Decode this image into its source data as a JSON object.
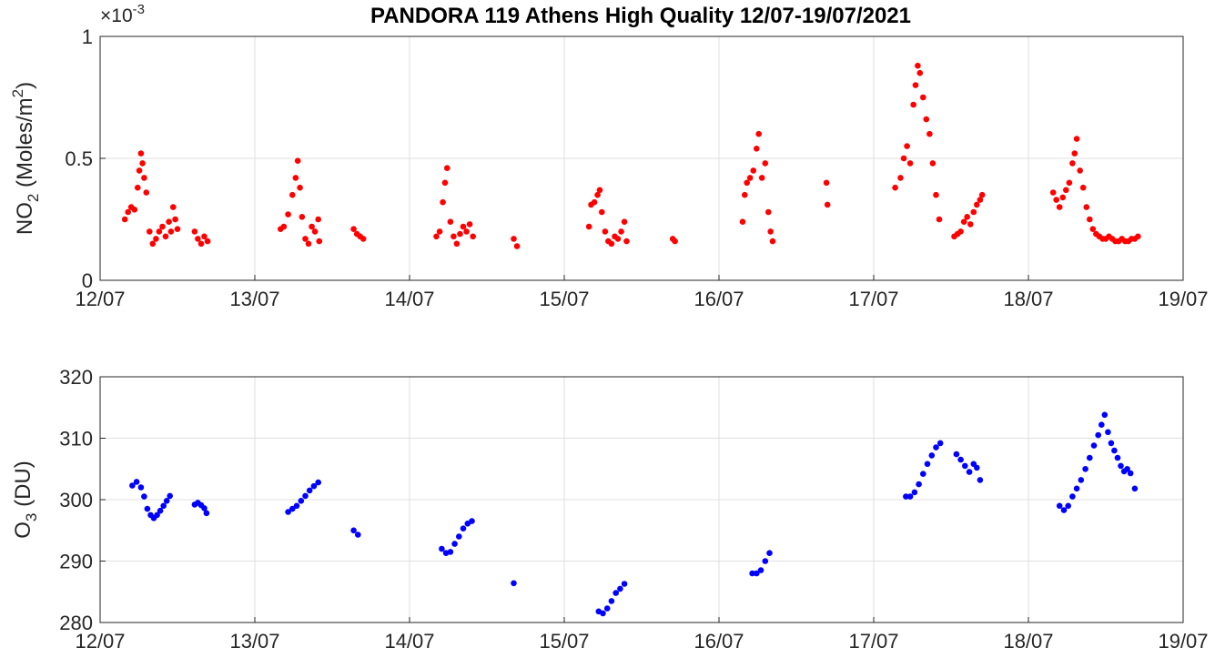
{
  "chart_data": [
    {
      "type": "scatter",
      "title": "PANDORA 119 Athens High Quality 12/07-19/07/2021",
      "ylabel": "NO2 (Moles/m2)",
      "ylabel_parts": {
        "main": "NO",
        "sub": "2",
        "unit_open": " (Moles/m",
        "sup": "2",
        "unit_close": ")"
      },
      "y_multiplier": {
        "base": "×10",
        "exp": "-3"
      },
      "x_unit": "days since 12/07 (date axis)",
      "xlim": [
        "12/07",
        "19/07"
      ],
      "ylim": [
        0,
        1
      ],
      "yticks": [
        0,
        0.5,
        1
      ],
      "ytick_labels": [
        "0",
        "0.5",
        "1"
      ],
      "xtick_labels": [
        "12/07",
        "13/07",
        "14/07",
        "15/07",
        "16/07",
        "17/07",
        "18/07",
        "19/07"
      ],
      "grid": true,
      "marker_color": "#ff0000",
      "series": [
        {
          "points": [
            [
              "12/07 03:50",
              0.25
            ],
            [
              "12/07 04:20",
              0.28
            ],
            [
              "12/07 04:50",
              0.3
            ],
            [
              "12/07 05:20",
              0.29
            ],
            [
              "12/07 05:50",
              0.38
            ],
            [
              "12/07 06:05",
              0.45
            ],
            [
              "12/07 06:20",
              0.52
            ],
            [
              "12/07 06:35",
              0.48
            ],
            [
              "12/07 06:50",
              0.42
            ],
            [
              "12/07 07:10",
              0.36
            ],
            [
              "12/07 07:40",
              0.2
            ],
            [
              "12/07 08:10",
              0.15
            ],
            [
              "12/07 08:40",
              0.17
            ],
            [
              "12/07 09:10",
              0.2
            ],
            [
              "12/07 09:40",
              0.22
            ],
            [
              "12/07 10:10",
              0.18
            ],
            [
              "12/07 10:40",
              0.24
            ],
            [
              "12/07 11:00",
              0.2
            ],
            [
              "12/07 11:20",
              0.3
            ],
            [
              "12/07 11:40",
              0.25
            ],
            [
              "12/07 12:00",
              0.21
            ],
            [
              "12/07 14:40",
              0.2
            ],
            [
              "12/07 15:10",
              0.17
            ],
            [
              "12/07 15:40",
              0.15
            ],
            [
              "12/07 16:10",
              0.18
            ],
            [
              "12/07 16:40",
              0.16
            ],
            [
              "13/07 04:00",
              0.21
            ],
            [
              "13/07 04:30",
              0.22
            ],
            [
              "13/07 05:10",
              0.27
            ],
            [
              "13/07 05:50",
              0.35
            ],
            [
              "13/07 06:20",
              0.42
            ],
            [
              "13/07 06:40",
              0.49
            ],
            [
              "13/07 07:00",
              0.38
            ],
            [
              "13/07 07:20",
              0.26
            ],
            [
              "13/07 07:50",
              0.17
            ],
            [
              "13/07 08:20",
              0.15
            ],
            [
              "13/07 08:50",
              0.22
            ],
            [
              "13/07 09:20",
              0.2
            ],
            [
              "13/07 09:50",
              0.25
            ],
            [
              "13/07 10:00",
              0.16
            ],
            [
              "13/07 15:20",
              0.21
            ],
            [
              "13/07 15:50",
              0.19
            ],
            [
              "13/07 16:20",
              0.18
            ],
            [
              "13/07 16:50",
              0.17
            ],
            [
              "14/07 04:10",
              0.18
            ],
            [
              "14/07 04:40",
              0.2
            ],
            [
              "14/07 05:10",
              0.32
            ],
            [
              "14/07 05:30",
              0.4
            ],
            [
              "14/07 05:50",
              0.46
            ],
            [
              "14/07 06:20",
              0.24
            ],
            [
              "14/07 06:50",
              0.18
            ],
            [
              "14/07 07:20",
              0.15
            ],
            [
              "14/07 07:50",
              0.19
            ],
            [
              "14/07 08:20",
              0.22
            ],
            [
              "14/07 08:50",
              0.2
            ],
            [
              "14/07 09:20",
              0.23
            ],
            [
              "14/07 09:50",
              0.18
            ],
            [
              "14/07 16:10",
              0.17
            ],
            [
              "14/07 16:40",
              0.14
            ],
            [
              "15/07 03:50",
              0.22
            ],
            [
              "15/07 04:10",
              0.31
            ],
            [
              "15/07 04:40",
              0.32
            ],
            [
              "15/07 05:10",
              0.35
            ],
            [
              "15/07 05:30",
              0.37
            ],
            [
              "15/07 05:50",
              0.28
            ],
            [
              "15/07 06:20",
              0.2
            ],
            [
              "15/07 06:50",
              0.16
            ],
            [
              "15/07 07:20",
              0.15
            ],
            [
              "15/07 07:50",
              0.18
            ],
            [
              "15/07 08:20",
              0.17
            ],
            [
              "15/07 08:50",
              0.2
            ],
            [
              "15/07 09:20",
              0.24
            ],
            [
              "15/07 09:40",
              0.16
            ],
            [
              "15/07 16:50",
              0.17
            ],
            [
              "15/07 17:10",
              0.16
            ],
            [
              "16/07 03:40",
              0.24
            ],
            [
              "16/07 04:00",
              0.35
            ],
            [
              "16/07 04:20",
              0.4
            ],
            [
              "16/07 04:50",
              0.42
            ],
            [
              "16/07 05:20",
              0.45
            ],
            [
              "16/07 05:50",
              0.54
            ],
            [
              "16/07 06:10",
              0.6
            ],
            [
              "16/07 06:40",
              0.42
            ],
            [
              "16/07 07:10",
              0.48
            ],
            [
              "16/07 07:40",
              0.28
            ],
            [
              "16/07 08:00",
              0.2
            ],
            [
              "16/07 08:20",
              0.16
            ],
            [
              "16/07 16:40",
              0.4
            ],
            [
              "16/07 16:50",
              0.31
            ],
            [
              "17/07 03:20",
              0.38
            ],
            [
              "17/07 04:10",
              0.42
            ],
            [
              "17/07 04:40",
              0.5
            ],
            [
              "17/07 05:10",
              0.55
            ],
            [
              "17/07 05:40",
              0.48
            ],
            [
              "17/07 06:10",
              0.72
            ],
            [
              "17/07 06:30",
              0.8
            ],
            [
              "17/07 06:50",
              0.88
            ],
            [
              "17/07 07:10",
              0.85
            ],
            [
              "17/07 07:40",
              0.75
            ],
            [
              "17/07 08:10",
              0.66
            ],
            [
              "17/07 08:40",
              0.6
            ],
            [
              "17/07 09:10",
              0.48
            ],
            [
              "17/07 09:40",
              0.35
            ],
            [
              "17/07 10:10",
              0.25
            ],
            [
              "17/07 12:30",
              0.18
            ],
            [
              "17/07 13:00",
              0.19
            ],
            [
              "17/07 13:30",
              0.2
            ],
            [
              "17/07 14:00",
              0.24
            ],
            [
              "17/07 14:30",
              0.26
            ],
            [
              "17/07 15:00",
              0.23
            ],
            [
              "17/07 15:30",
              0.28
            ],
            [
              "17/07 16:00",
              0.31
            ],
            [
              "17/07 16:30",
              0.33
            ],
            [
              "17/07 16:50",
              0.35
            ],
            [
              "18/07 03:50",
              0.36
            ],
            [
              "18/07 04:20",
              0.33
            ],
            [
              "18/07 04:50",
              0.3
            ],
            [
              "18/07 05:20",
              0.34
            ],
            [
              "18/07 05:50",
              0.37
            ],
            [
              "18/07 06:20",
              0.4
            ],
            [
              "18/07 06:50",
              0.48
            ],
            [
              "18/07 07:10",
              0.52
            ],
            [
              "18/07 07:30",
              0.58
            ],
            [
              "18/07 08:00",
              0.45
            ],
            [
              "18/07 08:30",
              0.38
            ],
            [
              "18/07 09:00",
              0.3
            ],
            [
              "18/07 09:30",
              0.25
            ],
            [
              "18/07 10:00",
              0.21
            ],
            [
              "18/07 10:30",
              0.19
            ],
            [
              "18/07 11:00",
              0.18
            ],
            [
              "18/07 11:30",
              0.17
            ],
            [
              "18/07 12:00",
              0.17
            ],
            [
              "18/07 12:30",
              0.18
            ],
            [
              "18/07 13:00",
              0.17
            ],
            [
              "18/07 13:30",
              0.16
            ],
            [
              "18/07 14:00",
              0.16
            ],
            [
              "18/07 14:30",
              0.17
            ],
            [
              "18/07 15:00",
              0.16
            ],
            [
              "18/07 15:30",
              0.16
            ],
            [
              "18/07 16:00",
              0.17
            ],
            [
              "18/07 16:30",
              0.17
            ],
            [
              "18/07 17:00",
              0.18
            ]
          ]
        }
      ]
    },
    {
      "type": "scatter",
      "title": "",
      "ylabel": "O3 (DU)",
      "ylabel_parts": {
        "main": "O",
        "sub": "3",
        "unit_open": " (DU)",
        "sup": "",
        "unit_close": ""
      },
      "xlim": [
        "12/07",
        "19/07"
      ],
      "ylim": [
        280,
        320
      ],
      "yticks": [
        280,
        290,
        300,
        310,
        320
      ],
      "ytick_labels": [
        "280",
        "290",
        "300",
        "310",
        "320"
      ],
      "xtick_labels": [
        "12/07",
        "13/07",
        "14/07",
        "15/07",
        "16/07",
        "17/07",
        "18/07",
        "19/07"
      ],
      "grid": true,
      "marker_color": "#0000ff",
      "series": [
        {
          "points": [
            [
              "12/07 05:00",
              302.3
            ],
            [
              "12/07 05:40",
              302.9
            ],
            [
              "12/07 06:20",
              302.0
            ],
            [
              "12/07 06:50",
              300.5
            ],
            [
              "12/07 07:20",
              298.5
            ],
            [
              "12/07 07:50",
              297.5
            ],
            [
              "12/07 08:20",
              297.0
            ],
            [
              "12/07 08:50",
              297.5
            ],
            [
              "12/07 09:20",
              298.2
            ],
            [
              "12/07 09:50",
              299.0
            ],
            [
              "12/07 10:20",
              299.8
            ],
            [
              "12/07 10:50",
              300.6
            ],
            [
              "12/07 14:40",
              299.2
            ],
            [
              "12/07 15:10",
              299.5
            ],
            [
              "12/07 15:40",
              299.1
            ],
            [
              "12/07 16:10",
              298.6
            ],
            [
              "12/07 16:30",
              297.8
            ],
            [
              "13/07 05:10",
              298.0
            ],
            [
              "13/07 05:50",
              298.5
            ],
            [
              "13/07 06:30",
              299.0
            ],
            [
              "13/07 07:10",
              299.8
            ],
            [
              "13/07 07:50",
              300.6
            ],
            [
              "13/07 08:30",
              301.5
            ],
            [
              "13/07 09:10",
              302.2
            ],
            [
              "13/07 09:50",
              302.8
            ],
            [
              "13/07 15:20",
              295.0
            ],
            [
              "13/07 16:00",
              294.3
            ],
            [
              "14/07 05:00",
              292.0
            ],
            [
              "14/07 05:40",
              291.3
            ],
            [
              "14/07 06:20",
              291.5
            ],
            [
              "14/07 07:00",
              292.8
            ],
            [
              "14/07 07:40",
              294.0
            ],
            [
              "14/07 08:20",
              295.3
            ],
            [
              "14/07 09:00",
              296.1
            ],
            [
              "14/07 09:40",
              296.5
            ],
            [
              "14/07 16:10",
              286.4
            ],
            [
              "15/07 05:20",
              281.8
            ],
            [
              "15/07 06:00",
              281.5
            ],
            [
              "15/07 06:40",
              282.3
            ],
            [
              "15/07 07:20",
              283.5
            ],
            [
              "15/07 08:00",
              284.8
            ],
            [
              "15/07 08:40",
              285.5
            ],
            [
              "15/07 09:20",
              286.3
            ],
            [
              "16/07 05:10",
              288.0
            ],
            [
              "16/07 05:50",
              288.0
            ],
            [
              "16/07 06:30",
              288.5
            ],
            [
              "16/07 07:10",
              290.0
            ],
            [
              "16/07 07:50",
              291.3
            ],
            [
              "17/07 05:00",
              300.5
            ],
            [
              "17/07 05:40",
              300.5
            ],
            [
              "17/07 06:20",
              301.2
            ],
            [
              "17/07 07:00",
              302.5
            ],
            [
              "17/07 07:40",
              304.2
            ],
            [
              "17/07 08:20",
              305.8
            ],
            [
              "17/07 09:00",
              307.2
            ],
            [
              "17/07 09:40",
              308.5
            ],
            [
              "17/07 10:20",
              309.2
            ],
            [
              "17/07 12:50",
              307.4
            ],
            [
              "17/07 13:30",
              306.5
            ],
            [
              "17/07 14:10",
              305.5
            ],
            [
              "17/07 14:50",
              304.5
            ],
            [
              "17/07 15:30",
              305.8
            ],
            [
              "17/07 16:00",
              305.2
            ],
            [
              "17/07 16:30",
              303.2
            ],
            [
              "18/07 04:50",
              299.0
            ],
            [
              "18/07 05:30",
              298.3
            ],
            [
              "18/07 06:10",
              299.0
            ],
            [
              "18/07 06:50",
              300.5
            ],
            [
              "18/07 07:30",
              301.8
            ],
            [
              "18/07 08:10",
              303.2
            ],
            [
              "18/07 08:50",
              305.0
            ],
            [
              "18/07 09:30",
              306.8
            ],
            [
              "18/07 10:10",
              308.8
            ],
            [
              "18/07 10:50",
              310.5
            ],
            [
              "18/07 11:20",
              312.2
            ],
            [
              "18/07 11:50",
              313.8
            ],
            [
              "18/07 12:20",
              311.0
            ],
            [
              "18/07 12:50",
              309.2
            ],
            [
              "18/07 13:20",
              308.0
            ],
            [
              "18/07 13:50",
              306.8
            ],
            [
              "18/07 14:20",
              305.5
            ],
            [
              "18/07 14:50",
              304.6
            ],
            [
              "18/07 15:20",
              305.0
            ],
            [
              "18/07 15:50",
              304.3
            ],
            [
              "18/07 16:30",
              301.8
            ]
          ]
        }
      ]
    }
  ]
}
